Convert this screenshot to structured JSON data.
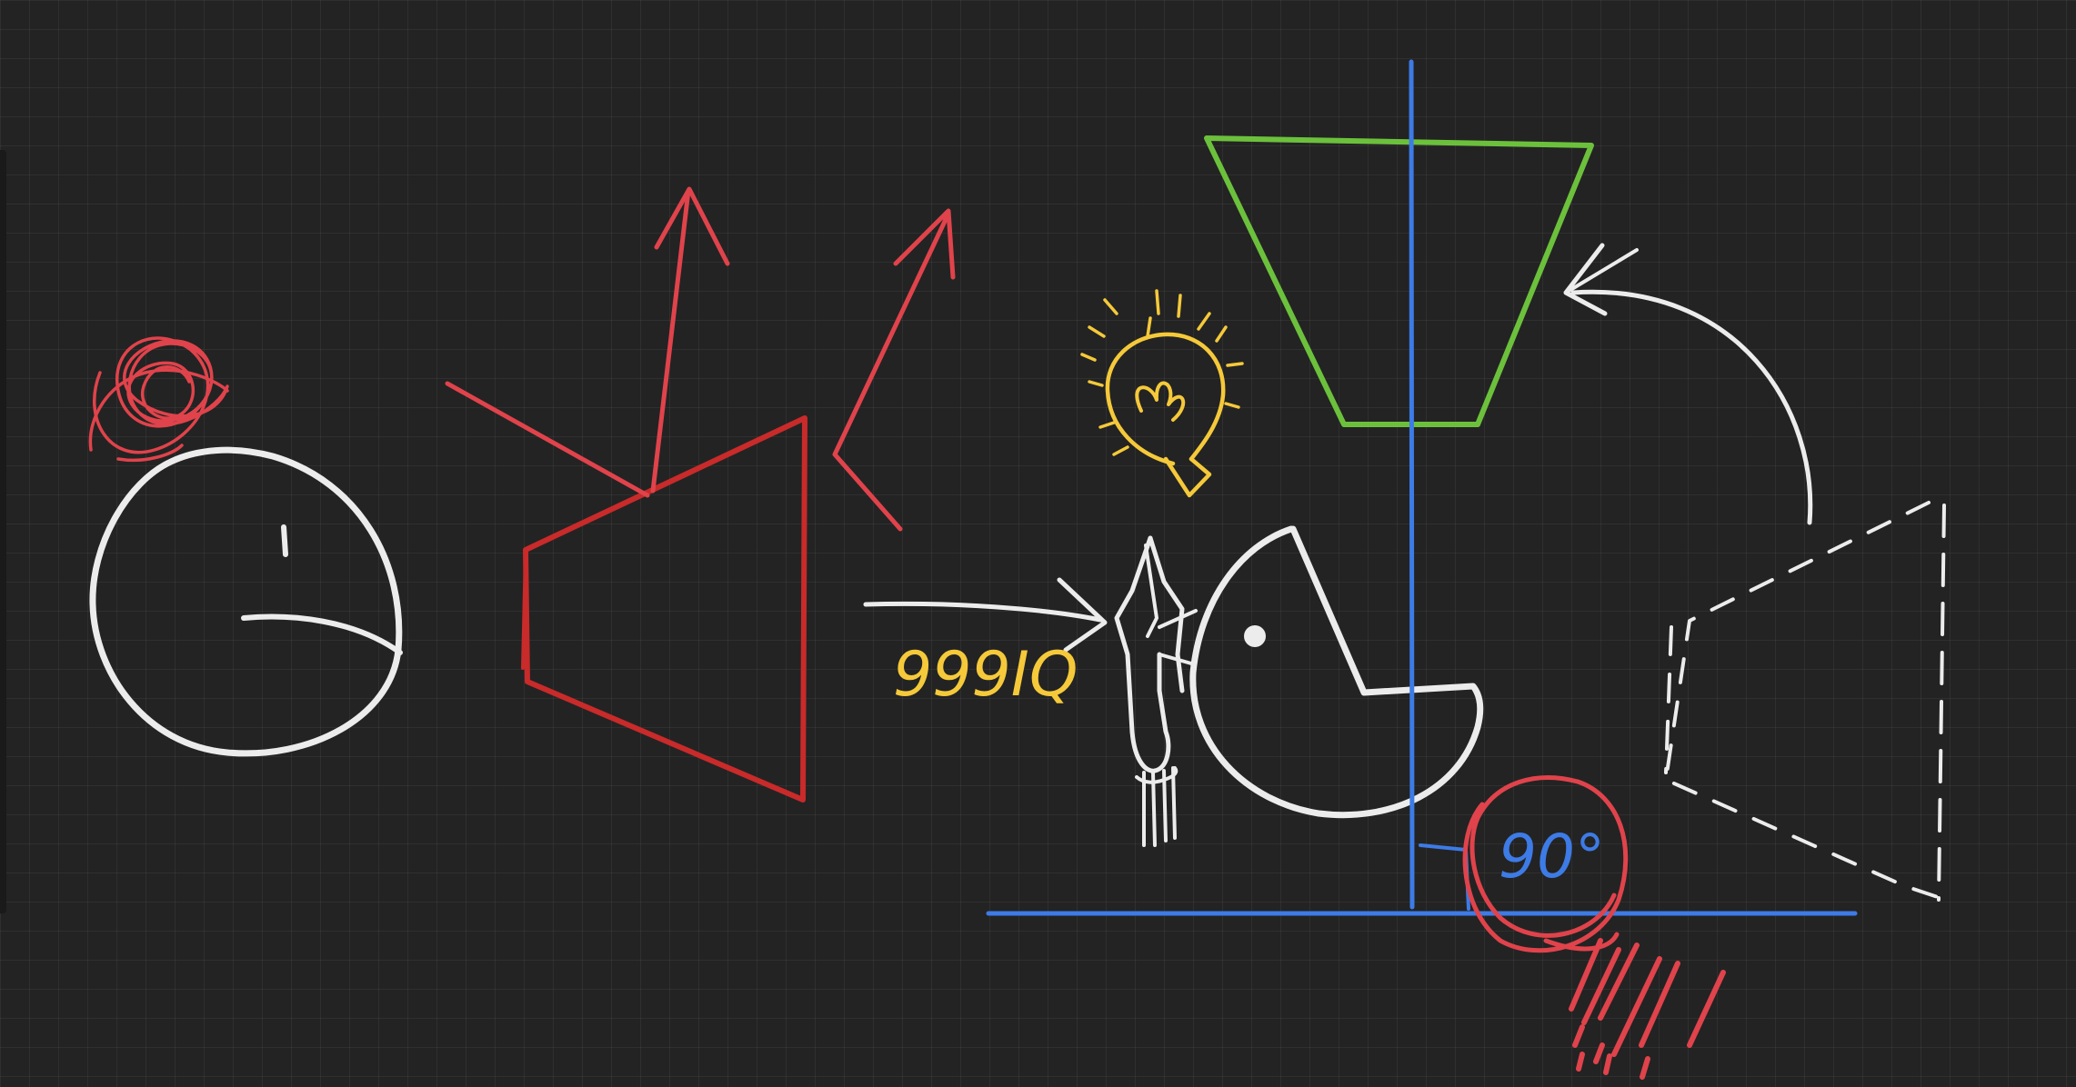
{
  "canvas": {
    "background": "#232323",
    "grid": true
  },
  "colors": {
    "white": "#ececec",
    "red": "#e0434b",
    "dark_red": "#c92a2a",
    "green": "#6cc13c",
    "blue": "#3d7be6",
    "yellow": "#f5c93a"
  },
  "annotations": {
    "iq_label": "999IQ",
    "angle_label": "90°"
  },
  "icons": {
    "lightbulb": "lightbulb-icon"
  }
}
